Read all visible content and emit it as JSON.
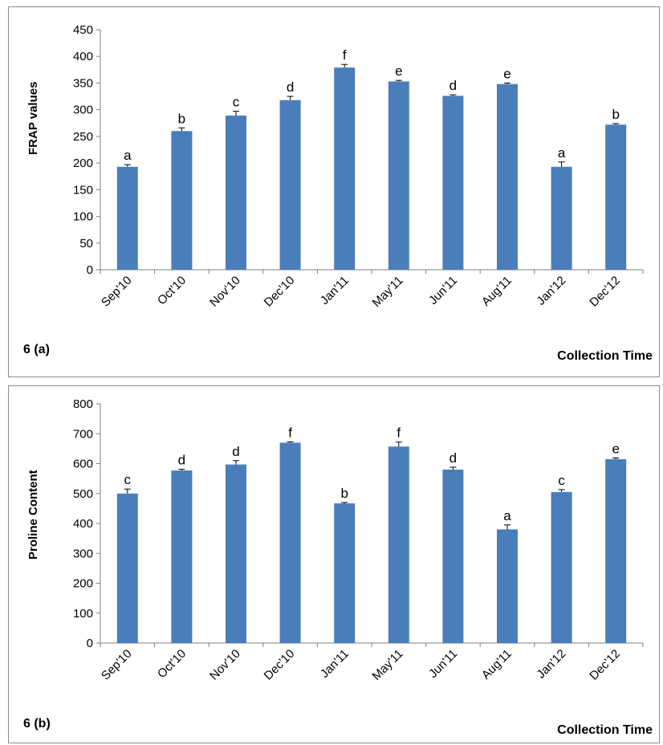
{
  "chart_data": [
    {
      "panel_label": "6 (a)",
      "type": "bar",
      "categories": [
        "Sep'10",
        "Oct'10",
        "Nov'10",
        "Dec'10",
        "Jan'11",
        "May'11",
        "Jun'11",
        "Aug'11",
        "Jan'12",
        "Dec'12"
      ],
      "values": [
        193,
        260,
        289,
        318,
        379,
        353,
        326,
        348,
        193,
        272
      ],
      "errors": [
        4,
        6,
        8,
        7,
        6,
        2,
        2,
        2,
        9,
        2
      ],
      "annotations": [
        "a",
        "b",
        "c",
        "d",
        "f",
        "e",
        "d",
        "e",
        "a",
        "b"
      ],
      "ylabel": "FRAP values",
      "xlabel": "Collection Time",
      "ylim": [
        0,
        450
      ],
      "yticks": [
        0,
        50,
        100,
        150,
        200,
        250,
        300,
        350,
        400,
        450
      ],
      "grid": false,
      "bar_color": "#4a7ebb"
    },
    {
      "panel_label": "6 (b)",
      "type": "bar",
      "categories": [
        "Sep'10",
        "Oct'10",
        "Nov'10",
        "Dec'10",
        "Jan'11",
        "May'11",
        "Jun'11",
        "Aug'11",
        "Jan'12",
        "Dec'12"
      ],
      "values": [
        500,
        577,
        597,
        670,
        467,
        657,
        580,
        380,
        505,
        615
      ],
      "errors": [
        15,
        4,
        13,
        3,
        3,
        15,
        8,
        15,
        8,
        4
      ],
      "annotations": [
        "c",
        "d",
        "d",
        "f",
        "b",
        "f",
        "d",
        "a",
        "c",
        "e"
      ],
      "ylabel": "Proline Content",
      "xlabel": "Collection Time",
      "ylim": [
        0,
        800
      ],
      "yticks": [
        0,
        100,
        200,
        300,
        400,
        500,
        600,
        700,
        800
      ],
      "grid": false,
      "bar_color": "#4a7ebb"
    }
  ]
}
